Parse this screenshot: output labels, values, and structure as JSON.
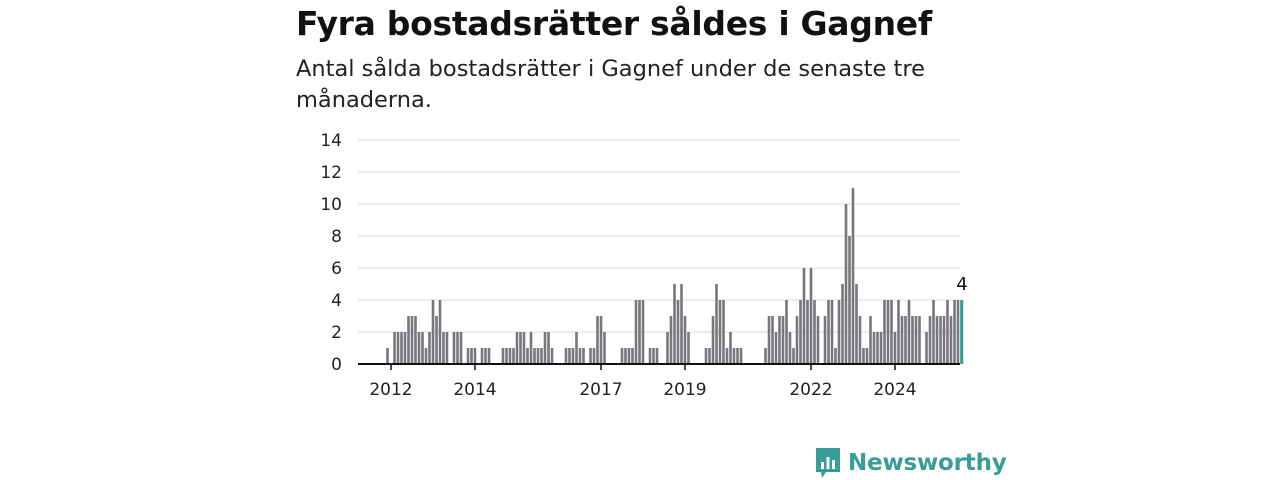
{
  "title": "Fyra bostadsrätter såldes i Gagnef",
  "subtitle": "Antal sålda bostadsrätter i Gagnef under de senaste tre månaderna.",
  "brand": {
    "name": "Newsworthy",
    "color": "#3a9c98"
  },
  "chart_data": {
    "type": "bar",
    "title": "Fyra bostadsrätter såldes i Gagnef",
    "subtitle": "Antal sålda bostadsrätter i Gagnef under de senaste tre månaderna.",
    "xlabel": "",
    "ylabel": "",
    "ylim": [
      0,
      14
    ],
    "yticks": [
      0,
      2,
      4,
      6,
      8,
      10,
      12,
      14
    ],
    "xticks": [
      "2012",
      "2014",
      "2017",
      "2019",
      "2022",
      "2024"
    ],
    "grid": true,
    "bar_color": "#77777d",
    "highlight_color": "#2a9d8f",
    "highlight_value_label": "4",
    "start": "2011-12",
    "frequency": "month",
    "values": [
      1,
      0,
      2,
      2,
      2,
      2,
      3,
      3,
      3,
      2,
      2,
      1,
      2,
      4,
      3,
      4,
      2,
      2,
      0,
      2,
      2,
      2,
      0,
      1,
      1,
      1,
      0,
      1,
      1,
      1,
      0,
      0,
      0,
      1,
      1,
      1,
      1,
      2,
      2,
      2,
      1,
      2,
      1,
      1,
      1,
      2,
      2,
      1,
      0,
      0,
      0,
      1,
      1,
      1,
      2,
      1,
      1,
      0,
      1,
      1,
      3,
      3,
      2,
      0,
      0,
      0,
      0,
      1,
      1,
      1,
      1,
      4,
      4,
      4,
      0,
      1,
      1,
      1,
      0,
      0,
      2,
      3,
      5,
      4,
      5,
      3,
      2,
      0,
      0,
      0,
      0,
      1,
      1,
      3,
      5,
      4,
      4,
      1,
      2,
      1,
      1,
      1,
      0,
      0,
      0,
      0,
      0,
      0,
      1,
      3,
      3,
      2,
      3,
      3,
      4,
      2,
      1,
      3,
      4,
      6,
      4,
      6,
      4,
      3,
      0,
      3,
      4,
      4,
      1,
      4,
      5,
      10,
      8,
      11,
      5,
      3,
      1,
      1,
      3,
      2,
      2,
      2,
      4,
      4,
      4,
      2,
      4,
      3,
      3,
      4,
      3,
      3,
      3,
      0,
      2,
      3,
      4,
      3,
      3,
      3,
      4,
      3,
      4,
      4,
      4
    ]
  }
}
